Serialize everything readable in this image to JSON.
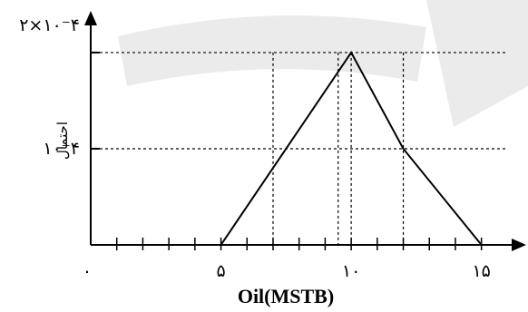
{
  "chart_data": {
    "type": "line",
    "xlabel": "Oil(MSTB)",
    "ylabel": "احتمال",
    "x_ticks": [
      {
        "value": 0,
        "label": "۰"
      },
      {
        "value": 5,
        "label": "۵"
      },
      {
        "value": 10,
        "label": "۱۰"
      },
      {
        "value": 15,
        "label": "۱۵"
      }
    ],
    "y_ticks": [
      {
        "value": 0.0001,
        "label": "۱۰⁻۴"
      },
      {
        "value": 0.0002,
        "label": "۲×۱۰⁻۴"
      }
    ],
    "xlim": [
      0,
      16.3
    ],
    "ylim": [
      0,
      0.000232
    ],
    "minor_tick_step": 1,
    "series": [
      {
        "x": [
          5,
          10,
          12,
          15
        ],
        "y": [
          0,
          0.0002,
          0.0001,
          0
        ]
      }
    ],
    "reference_lines": {
      "horizontal": [
        0.0002,
        0.0001
      ],
      "vertical": [
        7,
        9.5,
        10,
        12
      ]
    },
    "grid": false,
    "watermark_color": "#e9e9e9",
    "line_color": "#000000"
  }
}
